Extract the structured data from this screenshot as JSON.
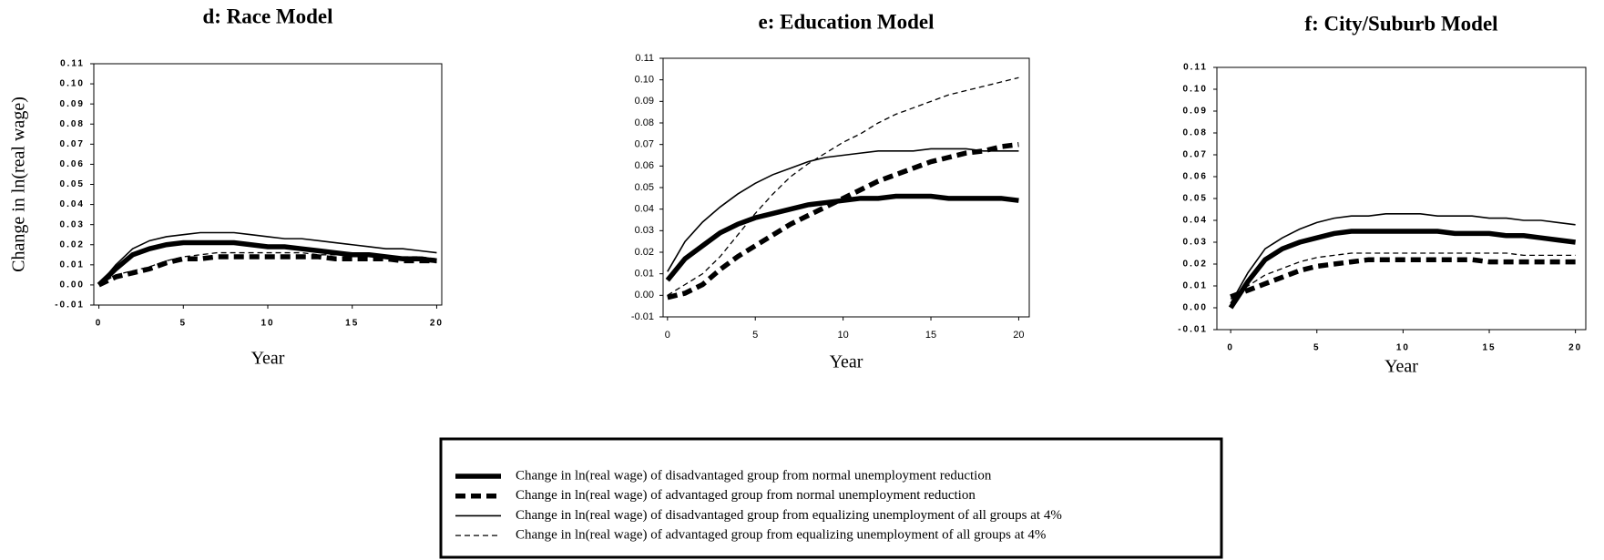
{
  "chart_data": [
    {
      "type": "line",
      "title": "d: Race Model",
      "ylabel": "Change in ln(real wage)",
      "xlabel": "Year",
      "x": [
        0,
        1,
        2,
        3,
        4,
        5,
        6,
        7,
        8,
        9,
        10,
        11,
        12,
        13,
        14,
        15,
        16,
        17,
        18,
        19,
        20
      ],
      "xlim": [
        -0.3,
        20.3
      ],
      "xticks": [
        0,
        5,
        10,
        15,
        20
      ],
      "ylim": [
        -0.01,
        0.11
      ],
      "yticks": [
        -0.01,
        {
          "value": 0,
          "label": "0.00"
        },
        0.01,
        0.02,
        0.03,
        0.04,
        0.05,
        0.06,
        0.07,
        0.08,
        0.09,
        {
          "value": 0.1,
          "label": "0.10"
        },
        0.11
      ],
      "series": [
        {
          "style": "thick-solid",
          "color": "#000",
          "values": [
            0.0,
            0.008,
            0.015,
            0.018,
            0.02,
            0.021,
            0.021,
            0.021,
            0.021,
            0.02,
            0.019,
            0.019,
            0.018,
            0.017,
            0.016,
            0.015,
            0.015,
            0.014,
            0.013,
            0.013,
            0.012
          ]
        },
        {
          "style": "thick-dashed",
          "color": "#000",
          "values": [
            0.0,
            0.004,
            0.006,
            0.008,
            0.011,
            0.013,
            0.013,
            0.014,
            0.014,
            0.014,
            0.014,
            0.014,
            0.014,
            0.014,
            0.013,
            0.013,
            0.013,
            0.013,
            0.012,
            0.012,
            0.012
          ]
        },
        {
          "style": "thin-solid",
          "color": "#000",
          "values": [
            0.0,
            0.01,
            0.018,
            0.022,
            0.024,
            0.025,
            0.026,
            0.026,
            0.026,
            0.025,
            0.024,
            0.023,
            0.023,
            0.022,
            0.021,
            0.02,
            0.019,
            0.018,
            0.018,
            0.017,
            0.016
          ]
        },
        {
          "style": "thin-dashed",
          "color": "#000",
          "values": [
            0.0,
            0.005,
            0.007,
            0.009,
            0.012,
            0.014,
            0.015,
            0.016,
            0.016,
            0.016,
            0.016,
            0.016,
            0.016,
            0.015,
            0.015,
            0.015,
            0.015,
            0.014,
            0.014,
            0.014,
            0.013
          ]
        }
      ]
    },
    {
      "type": "line",
      "title": "e: Education Model",
      "xlabel": "Year",
      "x": [
        0,
        1,
        2,
        3,
        4,
        5,
        6,
        7,
        8,
        9,
        10,
        11,
        12,
        13,
        14,
        15,
        16,
        17,
        18,
        19,
        20
      ],
      "xlim": [
        -0.25,
        20.6
      ],
      "xticks": [
        0,
        5,
        10,
        15,
        20
      ],
      "ylim": [
        -0.01,
        0.11
      ],
      "yticks": [
        -0.01,
        {
          "value": 0,
          "label": "0.00"
        },
        0.01,
        0.02,
        0.03,
        0.04,
        0.05,
        0.06,
        0.07,
        0.08,
        0.09,
        {
          "value": 0.1,
          "label": "0.10"
        },
        0.11
      ],
      "series": [
        {
          "style": "thick-solid",
          "color": "#000",
          "values": [
            0.007,
            0.017,
            0.023,
            0.029,
            0.033,
            0.036,
            0.038,
            0.04,
            0.042,
            0.043,
            0.044,
            0.045,
            0.045,
            0.046,
            0.046,
            0.046,
            0.045,
            0.045,
            0.045,
            0.045,
            0.044
          ]
        },
        {
          "style": "thick-dashed",
          "color": "#000",
          "values": [
            -0.001,
            0.001,
            0.005,
            0.012,
            0.018,
            0.023,
            0.028,
            0.033,
            0.037,
            0.041,
            0.045,
            0.049,
            0.053,
            0.056,
            0.059,
            0.062,
            0.064,
            0.066,
            0.067,
            0.069,
            0.07
          ]
        },
        {
          "style": "thin-solid",
          "color": "#000",
          "values": [
            0.011,
            0.025,
            0.034,
            0.041,
            0.047,
            0.052,
            0.056,
            0.059,
            0.062,
            0.064,
            0.065,
            0.066,
            0.067,
            0.067,
            0.067,
            0.068,
            0.068,
            0.068,
            0.067,
            0.067,
            0.067
          ]
        },
        {
          "style": "thin-dashed",
          "color": "#000",
          "values": [
            0.0,
            0.005,
            0.01,
            0.018,
            0.028,
            0.038,
            0.047,
            0.055,
            0.061,
            0.066,
            0.071,
            0.075,
            0.08,
            0.084,
            0.087,
            0.09,
            0.093,
            0.095,
            0.097,
            0.099,
            0.101
          ]
        }
      ]
    },
    {
      "type": "line",
      "title": "f: City/Suburb Model",
      "xlabel": "Year",
      "x": [
        0,
        1,
        2,
        3,
        4,
        5,
        6,
        7,
        8,
        9,
        10,
        11,
        12,
        13,
        14,
        15,
        16,
        17,
        18,
        19,
        20
      ],
      "xlim": [
        -0.8,
        20.6
      ],
      "xticks": [
        0,
        5,
        10,
        15,
        20
      ],
      "ylim": [
        -0.01,
        0.11
      ],
      "yticks": [
        -0.01,
        {
          "value": 0,
          "label": "0.00"
        },
        0.01,
        0.02,
        0.03,
        0.04,
        0.05,
        0.06,
        0.07,
        0.08,
        0.09,
        {
          "value": 0.1,
          "label": "0.10"
        },
        0.11
      ],
      "series": [
        {
          "style": "thick-solid",
          "color": "#000",
          "values": [
            0.0,
            0.012,
            0.022,
            0.027,
            0.03,
            0.032,
            0.034,
            0.035,
            0.035,
            0.035,
            0.035,
            0.035,
            0.035,
            0.034,
            0.034,
            0.034,
            0.033,
            0.033,
            0.032,
            0.031,
            0.03
          ]
        },
        {
          "style": "thick-dashed",
          "color": "#000",
          "values": [
            0.005,
            0.008,
            0.011,
            0.014,
            0.017,
            0.019,
            0.02,
            0.021,
            0.022,
            0.022,
            0.022,
            0.022,
            0.022,
            0.022,
            0.022,
            0.021,
            0.021,
            0.021,
            0.021,
            0.021,
            0.021
          ]
        },
        {
          "style": "thin-solid",
          "color": "#000",
          "values": [
            0.002,
            0.016,
            0.027,
            0.032,
            0.036,
            0.039,
            0.041,
            0.042,
            0.042,
            0.043,
            0.043,
            0.043,
            0.042,
            0.042,
            0.042,
            0.041,
            0.041,
            0.04,
            0.04,
            0.039,
            0.038
          ]
        },
        {
          "style": "thin-dashed",
          "color": "#000",
          "values": [
            0.004,
            0.01,
            0.015,
            0.018,
            0.021,
            0.023,
            0.024,
            0.025,
            0.025,
            0.025,
            0.025,
            0.025,
            0.025,
            0.025,
            0.025,
            0.025,
            0.025,
            0.024,
            0.024,
            0.024,
            0.024
          ]
        }
      ]
    }
  ],
  "legend": {
    "entries": [
      "Change in ln(real wage) of disadvantaged group from normal unemployment reduction",
      "Change in ln(real wage) of advantaged group from normal unemployment reduction",
      "Change in ln(real wage) of disadvantaged group from equalizing unemployment of all groups at 4%",
      "Change in ln(real wage) of advantaged group from equalizing unemployment of all groups at 4%"
    ]
  }
}
